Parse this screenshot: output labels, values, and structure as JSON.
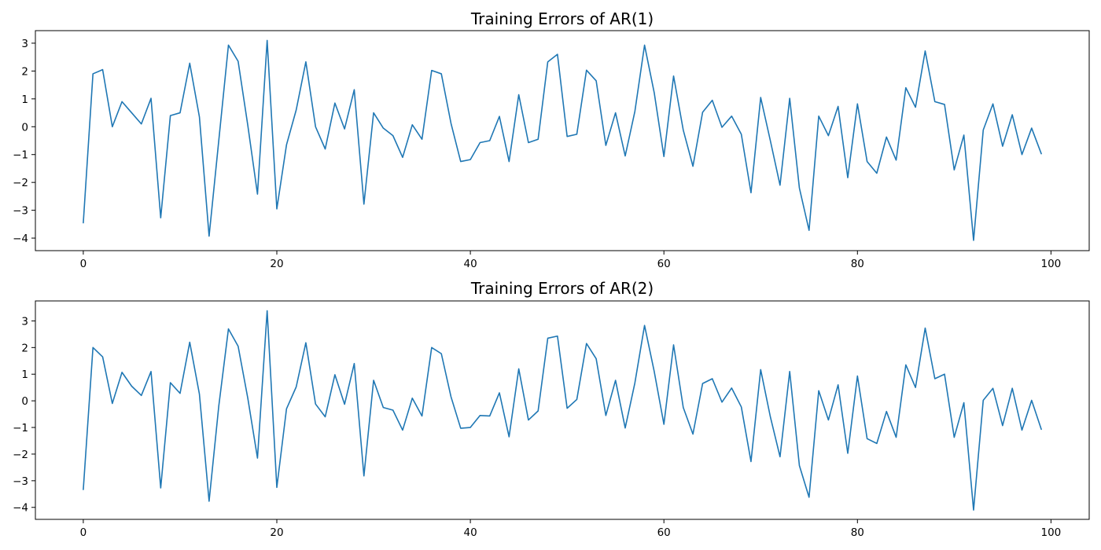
{
  "chart_data": [
    {
      "type": "line",
      "title": "Training Errors of AR(1)",
      "xlabel": "",
      "ylabel": "",
      "xlim": [
        -4.95,
        103.95
      ],
      "ylim": [
        -4.45,
        3.45
      ],
      "xticks": [
        0,
        20,
        40,
        60,
        80,
        100
      ],
      "yticks": [
        -4,
        -3,
        -2,
        -1,
        0,
        1,
        2,
        3
      ],
      "xtick_labels": [
        "0",
        "20",
        "40",
        "60",
        "80",
        "100"
      ],
      "ytick_labels": [
        "−4",
        "−3",
        "−2",
        "−1",
        "0",
        "1",
        "2",
        "3"
      ],
      "grid": false,
      "color": "#1f77b4",
      "series": [
        {
          "x": [
            0,
            1,
            2,
            3,
            4,
            5,
            6,
            7,
            8,
            9,
            10,
            11,
            12,
            13,
            14,
            15,
            16,
            17,
            18,
            19,
            20,
            21,
            22,
            23,
            24,
            25,
            26,
            27,
            28,
            29,
            30,
            31,
            32,
            33,
            34,
            35,
            36,
            37,
            38,
            39,
            40,
            41,
            42,
            43,
            44,
            45,
            46,
            47,
            48,
            49,
            50,
            51,
            52,
            53,
            54,
            55,
            56,
            57,
            58,
            59,
            60,
            61,
            62,
            63,
            64,
            65,
            66,
            67,
            68,
            69,
            70,
            71,
            72,
            73,
            74,
            75,
            76,
            77,
            78,
            79,
            80,
            81,
            82,
            83,
            84,
            85,
            86,
            87,
            88,
            89,
            90,
            91,
            92,
            93,
            94,
            95,
            96,
            97,
            98,
            99
          ],
          "values": [
            -3.45,
            1.9,
            2.05,
            0.0,
            0.9,
            0.5,
            0.1,
            1.02,
            -3.27,
            0.4,
            0.5,
            2.28,
            0.35,
            -3.93,
            -0.5,
            2.93,
            2.35,
            0.05,
            -2.42,
            3.1,
            -2.95,
            -0.65,
            0.6,
            2.33,
            0.0,
            -0.8,
            0.85,
            -0.08,
            1.33,
            -2.78,
            0.5,
            -0.05,
            -0.32,
            -1.1,
            0.07,
            -0.45,
            2.02,
            1.9,
            0.12,
            -1.25,
            -1.18,
            -0.57,
            -0.5,
            0.37,
            -1.25,
            1.15,
            -0.57,
            -0.45,
            2.33,
            2.6,
            -0.35,
            -0.27,
            2.03,
            1.65,
            -0.67,
            0.5,
            -1.05,
            0.55,
            2.93,
            1.22,
            -1.07,
            1.82,
            -0.12,
            -1.42,
            0.52,
            0.95,
            -0.02,
            0.38,
            -0.27,
            -2.37,
            1.05,
            -0.5,
            -2.1,
            1.02,
            -2.2,
            -3.72,
            0.38,
            -0.32,
            0.73,
            -1.83,
            0.82,
            -1.25,
            -1.67,
            -0.37,
            -1.2,
            1.4,
            0.7,
            2.72,
            0.9,
            0.8,
            -1.55,
            -0.3,
            -4.08,
            -0.12,
            0.82,
            -0.7,
            0.43,
            -1.0,
            -0.05,
            -0.97
          ]
        }
      ]
    },
    {
      "type": "line",
      "title": "Training Errors of AR(2)",
      "xlabel": "",
      "ylabel": "",
      "xlim": [
        -4.95,
        103.95
      ],
      "ylim": [
        -4.45,
        3.75
      ],
      "xticks": [
        0,
        20,
        40,
        60,
        80,
        100
      ],
      "yticks": [
        -4,
        -3,
        -2,
        -1,
        0,
        1,
        2,
        3
      ],
      "xtick_labels": [
        "0",
        "20",
        "40",
        "60",
        "80",
        "100"
      ],
      "ytick_labels": [
        "−4",
        "−3",
        "−2",
        "−1",
        "0",
        "1",
        "2",
        "3"
      ],
      "grid": false,
      "color": "#1f77b4",
      "series": [
        {
          "x": [
            0,
            1,
            2,
            3,
            4,
            5,
            6,
            7,
            8,
            9,
            10,
            11,
            12,
            13,
            14,
            15,
            16,
            17,
            18,
            19,
            20,
            21,
            22,
            23,
            24,
            25,
            26,
            27,
            28,
            29,
            30,
            31,
            32,
            33,
            34,
            35,
            36,
            37,
            38,
            39,
            40,
            41,
            42,
            43,
            44,
            45,
            46,
            47,
            48,
            49,
            50,
            51,
            52,
            53,
            54,
            55,
            56,
            57,
            58,
            59,
            60,
            61,
            62,
            63,
            64,
            65,
            66,
            67,
            68,
            69,
            70,
            71,
            72,
            73,
            74,
            75,
            76,
            77,
            78,
            79,
            80,
            81,
            82,
            83,
            84,
            85,
            86,
            87,
            88,
            89,
            90,
            91,
            92,
            93,
            94,
            95,
            96,
            97,
            98,
            99
          ],
          "values": [
            -3.33,
            2.0,
            1.65,
            -0.1,
            1.07,
            0.55,
            0.2,
            1.1,
            -3.27,
            0.68,
            0.28,
            2.2,
            0.25,
            -3.77,
            -0.2,
            2.7,
            2.05,
            0.1,
            -2.15,
            3.38,
            -3.25,
            -0.3,
            0.52,
            2.18,
            -0.12,
            -0.6,
            0.98,
            -0.13,
            1.4,
            -2.82,
            0.77,
            -0.25,
            -0.35,
            -1.1,
            0.1,
            -0.57,
            2.0,
            1.77,
            0.15,
            -1.03,
            -1.0,
            -0.55,
            -0.57,
            0.3,
            -1.35,
            1.2,
            -0.72,
            -0.38,
            2.35,
            2.43,
            -0.28,
            0.05,
            2.15,
            1.58,
            -0.55,
            0.77,
            -1.02,
            0.67,
            2.83,
            1.1,
            -0.88,
            2.1,
            -0.25,
            -1.25,
            0.65,
            0.83,
            -0.05,
            0.48,
            -0.23,
            -2.28,
            1.17,
            -0.6,
            -2.1,
            1.1,
            -2.43,
            -3.62,
            0.38,
            -0.72,
            0.6,
            -1.97,
            0.93,
            -1.42,
            -1.6,
            -0.4,
            -1.37,
            1.35,
            0.5,
            2.73,
            0.83,
            1.0,
            -1.37,
            -0.07,
            -4.1,
            0.02,
            0.47,
            -0.93,
            0.47,
            -1.1,
            0.02,
            -1.07
          ]
        }
      ]
    }
  ]
}
